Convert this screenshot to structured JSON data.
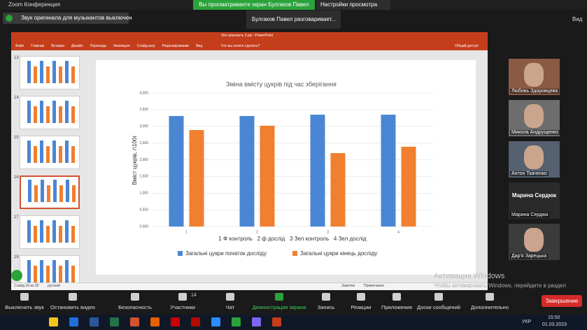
{
  "window": {
    "title": "Zoom Конференция"
  },
  "banner": {
    "text": "Вы просматриваете экран Булгаков Павел",
    "settings": "Настройки просмотра"
  },
  "notification": "Звук оригинала для музыкантов выключен",
  "speaker": "Булгаков Павел разговаривает...",
  "view_button": "Вид",
  "powerpoint": {
    "title": "Зел асірнанть 3 рік - PowerPoint",
    "tabs": [
      "Файл",
      "Главная",
      "Вставка",
      "Дизайн",
      "Переходы",
      "Анимация",
      "Слайд-шоу",
      "Рецензирование",
      "Вид"
    ],
    "search": "Что вы хотите сделать?",
    "share": "Общий доступ",
    "slide_numbers": [
      "13",
      "14",
      "15",
      "16",
      "17",
      "18"
    ],
    "status": "Слайд 16 из 20",
    "language": "русский",
    "notes": "Заметки",
    "comments": "Примечания"
  },
  "chart_data": {
    "type": "bar",
    "title": "Зміна вмісту цукрів під час зберігання",
    "y_label": "Вміст цукрів, г\\100г",
    "categories": [
      "1",
      "2",
      "3",
      "4"
    ],
    "category_note": "1 Ф контроль   2 ф дослід   3 Зел контроль   4 Зел дослід",
    "series": [
      {
        "name": "Загальні цукри початок досліду",
        "color": "#4a86d4",
        "values": [
          3.31,
          3.31,
          3.35,
          3.35
        ]
      },
      {
        "name": "Загальні цукри кінець досліду",
        "color": "#f07f2f",
        "values": [
          2.89,
          3.02,
          2.2,
          2.39
        ]
      }
    ],
    "ylim": [
      0,
      4
    ],
    "yticks": [
      {
        "value": 0,
        "label": "0,000"
      },
      {
        "value": 0.5,
        "label": "0,500"
      },
      {
        "value": 1,
        "label": "1,000"
      },
      {
        "value": 1.5,
        "label": "1,500"
      },
      {
        "value": 2,
        "label": "2,000"
      },
      {
        "value": 2.5,
        "label": "2,500"
      },
      {
        "value": 3,
        "label": "3,000"
      },
      {
        "value": 3.5,
        "label": "3,500"
      },
      {
        "value": 4,
        "label": "4,000"
      }
    ],
    "grid": true,
    "legend": "bottom"
  },
  "participants": [
    {
      "name": "Любовь Здоровцева"
    },
    {
      "name": "Микола Андрущенко"
    },
    {
      "name": "Антон Ткаченко"
    },
    {
      "name": "Марина Сердюк",
      "tile_text": "Марина Сердюк"
    },
    {
      "name": "Дар'я Зарецька"
    }
  ],
  "watermark": {
    "title": "Активация Windows",
    "text": "Чтобы активировать Windows, перейдите в раздел \"Параметры\"."
  },
  "toolbar": {
    "items": [
      "Выключить звук",
      "Остановить видео",
      "Безопасность",
      "Участники",
      "Чат",
      "Демонстрация экрана",
      "Запись",
      "Реакции",
      "Приложения",
      "Доски сообщений",
      "Дополнительно"
    ],
    "participants_count": "14",
    "end": "Завершение"
  },
  "taskbar": {
    "lang": "УКР",
    "time": "15:50",
    "date": "01.03.2023"
  }
}
